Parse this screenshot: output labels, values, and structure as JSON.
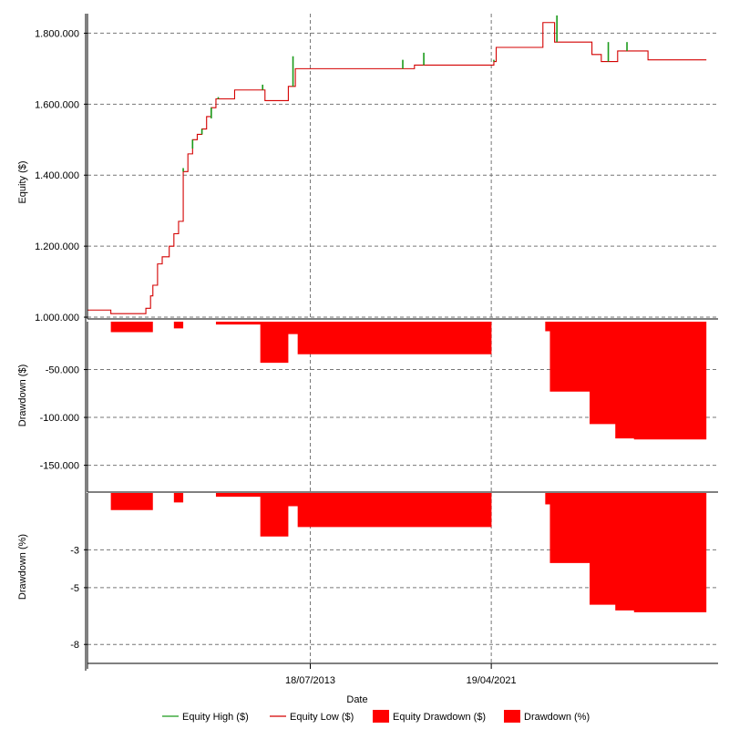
{
  "colors": {
    "equity_high": "#1a9a1a",
    "equity_low": "#d40000",
    "drawdown_fill": "#ff0000",
    "axis": "#000000",
    "grid": "#777777"
  },
  "chart_data": [
    {
      "type": "line",
      "panel": "equity",
      "ylabel": "Equity ($)",
      "ylim": [
        995000,
        1855000
      ],
      "y_ticks": [
        1000000,
        1200000,
        1400000,
        1600000,
        1800000
      ],
      "y_tick_labels": [
        "1.000.000",
        "1.200.000",
        "1.400.000",
        "1.600.000",
        "1.800.000"
      ],
      "grid": true,
      "series": [
        {
          "name": "Equity Low ($)",
          "x": [
            2004.0,
            2004.9,
            2005.0,
            2006.2,
            2006.5,
            2006.7,
            2006.8,
            2007.0,
            2007.2,
            2007.5,
            2007.7,
            2007.9,
            2008.1,
            2008.3,
            2008.5,
            2008.7,
            2008.9,
            2009.1,
            2009.3,
            2009.5,
            2009.7,
            2009.9,
            2010.3,
            2011.4,
            2011.6,
            2012.5,
            2012.6,
            2012.9,
            2013.0,
            2017.4,
            2017.6,
            2018.0,
            2018.1,
            2018.4,
            2018.5,
            2021.1,
            2021.4,
            2021.5,
            2022.4,
            2023.5,
            2024.0,
            2024.3,
            2024.7,
            2025.3,
            2025.6,
            2026.0,
            2026.7,
            2028.0,
            2029.3,
            2030.5
          ],
          "values": [
            1020000,
            1020000,
            1010000,
            1010000,
            1025000,
            1060000,
            1090000,
            1150000,
            1170000,
            1200000,
            1235000,
            1270000,
            1410000,
            1460000,
            1500000,
            1515000,
            1530000,
            1565000,
            1590000,
            1615000,
            1615000,
            1615000,
            1640000,
            1640000,
            1610000,
            1610000,
            1650000,
            1700000,
            1700000,
            1700000,
            1700000,
            1710000,
            1710000,
            1710000,
            1710000,
            1710000,
            1720000,
            1760000,
            1760000,
            1830000,
            1775000,
            1775000,
            1775000,
            1775000,
            1740000,
            1720000,
            1750000,
            1725000,
            1725000,
            1725000
          ]
        },
        {
          "name": "Equity High ($)",
          "x": [
            2008.1,
            2008.5,
            2008.9,
            2009.3,
            2009.6,
            2011.5,
            2012.8,
            2017.5,
            2018.4,
            2021.4,
            2024.1,
            2026.3,
            2027.1
          ],
          "values": [
            1420000,
            1475000,
            1515000,
            1560000,
            1620000,
            1655000,
            1735000,
            1725000,
            1745000,
            1725000,
            1850000,
            1775000,
            1775000
          ]
        }
      ]
    },
    {
      "type": "area",
      "panel": "drawdown_dollar",
      "ylabel": "Drawdown ($)",
      "ylim": [
        -178000,
        0
      ],
      "y_ticks": [
        -50000,
        -100000,
        -150000
      ],
      "y_tick_labels": [
        "-50.000",
        "-100.000",
        "-150.000"
      ],
      "grid": true,
      "series": [
        {
          "name": "Equity Drawdown ($)",
          "x": [
            2004.0,
            2004.9,
            2005.0,
            2006.7,
            2006.8,
            2007.5,
            2007.7,
            2008.0,
            2008.1,
            2009.4,
            2009.5,
            2011.3,
            2011.4,
            2012.5,
            2012.6,
            2012.9,
            2013.0,
            2020.8,
            2021.3,
            2023.5,
            2023.6,
            2023.7,
            2023.8,
            2025.4,
            2025.5,
            2026.5,
            2026.6,
            2027.3,
            2027.4,
            2030.5
          ],
          "values": [
            0,
            0,
            -11000,
            -11000,
            0,
            0,
            -7000,
            -7000,
            0,
            0,
            -3000,
            -3000,
            -43000,
            -43000,
            -13000,
            -13000,
            -34000,
            -34000,
            0,
            0,
            -10000,
            -10000,
            -73000,
            -73000,
            -107000,
            -107000,
            -122000,
            -122000,
            -123000,
            -123000
          ]
        }
      ]
    },
    {
      "type": "area",
      "panel": "drawdown_percent",
      "ylabel": "Drawdown (%)",
      "ylim": [
        -9.0,
        0
      ],
      "y_ticks": [
        -3,
        -5,
        -8
      ],
      "y_tick_labels": [
        "-3",
        "-5",
        "-8"
      ],
      "grid": true,
      "series": [
        {
          "name": "Drawdown (%)",
          "x": [
            2004.0,
            2004.9,
            2005.0,
            2006.7,
            2006.8,
            2007.5,
            2007.7,
            2008.0,
            2008.1,
            2009.4,
            2009.5,
            2011.3,
            2011.4,
            2012.5,
            2012.6,
            2012.9,
            2013.0,
            2020.8,
            2021.3,
            2023.5,
            2023.6,
            2023.7,
            2023.8,
            2025.4,
            2025.5,
            2026.5,
            2026.6,
            2027.3,
            2027.4,
            2030.5
          ],
          "values": [
            0,
            0,
            -0.9,
            -0.9,
            0,
            0,
            -0.5,
            -0.5,
            0,
            0,
            -0.2,
            -0.2,
            -2.3,
            -2.3,
            -0.7,
            -0.7,
            -1.8,
            -1.8,
            0,
            0,
            -0.6,
            -0.6,
            -3.7,
            -3.7,
            -5.9,
            -5.9,
            -6.2,
            -6.2,
            -6.3,
            -6.3
          ]
        }
      ]
    }
  ],
  "x_axis": {
    "label": "Date",
    "xlim": [
      2004.0,
      2031.0
    ],
    "ticks": [
      2013.54,
      2021.29
    ],
    "tick_labels": [
      "18/07/2013",
      "19/04/2021"
    ]
  },
  "legend": {
    "position": "bottom",
    "items": [
      {
        "label": "Equity High ($)",
        "kind": "line",
        "color_key": "equity_high"
      },
      {
        "label": "Equity Low ($)",
        "kind": "line",
        "color_key": "equity_low"
      },
      {
        "label": "Equity Drawdown ($)",
        "kind": "box",
        "color_key": "drawdown_fill"
      },
      {
        "label": "Drawdown (%)",
        "kind": "box",
        "color_key": "drawdown_fill"
      }
    ]
  }
}
